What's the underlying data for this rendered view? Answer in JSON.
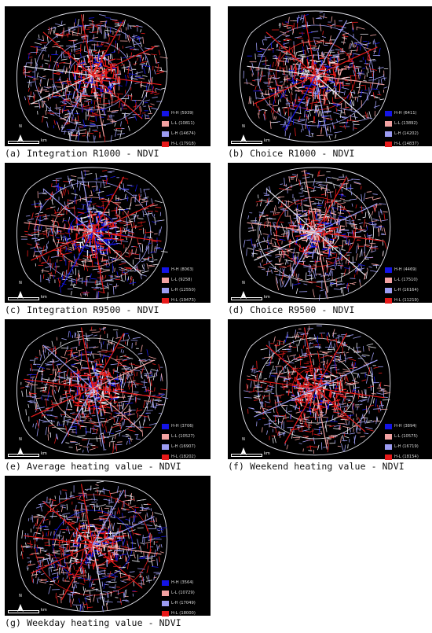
{
  "colors": {
    "background": "#000000",
    "H-H": "#1414e6",
    "L-L": "#f2a2a2",
    "L-H": "#9c9cf2",
    "H-L": "#e61a1a",
    "neutral": "#e8e8f0"
  },
  "panels": [
    {
      "caption": "(a) Integration R1000 - NDVI",
      "legend": [
        {
          "cls": "H-H",
          "text": "H-H (5939)"
        },
        {
          "cls": "L-L",
          "text": "L-L (10811)"
        },
        {
          "cls": "L-H",
          "text": "L-H (14674)"
        },
        {
          "cls": "H-L",
          "text": "H-L (17918)"
        }
      ],
      "mix": {
        "H-H": 0.15,
        "L-L": 0.18,
        "L-H": 0.25,
        "H-L": 0.42
      }
    },
    {
      "caption": "(b) Choice R1000 - NDVI",
      "legend": [
        {
          "cls": "H-H",
          "text": "H-H (6411)"
        },
        {
          "cls": "L-L",
          "text": "L-L (13892)"
        },
        {
          "cls": "L-H",
          "text": "L-H (14202)"
        },
        {
          "cls": "H-L",
          "text": "H-L (14837)"
        }
      ],
      "mix": {
        "H-H": 0.12,
        "L-L": 0.26,
        "L-H": 0.3,
        "H-L": 0.32
      }
    },
    {
      "caption": "(c) Integration R9500 - NDVI",
      "legend": [
        {
          "cls": "H-H",
          "text": "H-H (8063)"
        },
        {
          "cls": "L-L",
          "text": "L-L (9258)"
        },
        {
          "cls": "L-H",
          "text": "L-H (12550)"
        },
        {
          "cls": "H-L",
          "text": "H-L (19473)"
        }
      ],
      "mix": {
        "H-H": 0.2,
        "L-L": 0.15,
        "L-H": 0.23,
        "H-L": 0.42
      }
    },
    {
      "caption": "(d) Choice R9500 - NDVI",
      "legend": [
        {
          "cls": "H-H",
          "text": "H-H (4469)"
        },
        {
          "cls": "L-L",
          "text": "L-L (17510)"
        },
        {
          "cls": "L-H",
          "text": "L-H (16164)"
        },
        {
          "cls": "H-L",
          "text": "H-L (11219)"
        }
      ],
      "mix": {
        "H-H": 0.09,
        "L-L": 0.35,
        "L-H": 0.34,
        "H-L": 0.22
      }
    },
    {
      "caption": "(e) Average heating value - NDVI",
      "legend": [
        {
          "cls": "H-H",
          "text": "H-H (3706)"
        },
        {
          "cls": "L-L",
          "text": "L-L (10527)"
        },
        {
          "cls": "L-H",
          "text": "L-H (16907)"
        },
        {
          "cls": "H-L",
          "text": "H-L (18202)"
        }
      ],
      "mix": {
        "H-H": 0.09,
        "L-L": 0.2,
        "L-H": 0.33,
        "H-L": 0.38
      }
    },
    {
      "caption": "(f) Weekend heating value - NDVI",
      "legend": [
        {
          "cls": "H-H",
          "text": "H-H (3894)"
        },
        {
          "cls": "L-L",
          "text": "L-L (10575)"
        },
        {
          "cls": "L-H",
          "text": "L-H (16719)"
        },
        {
          "cls": "H-L",
          "text": "H-L (18154)"
        }
      ],
      "mix": {
        "H-H": 0.09,
        "L-L": 0.2,
        "L-H": 0.33,
        "H-L": 0.38
      }
    },
    {
      "caption": "(g) Weekday heating value - NDVI",
      "legend": [
        {
          "cls": "H-H",
          "text": "H-H (3564)"
        },
        {
          "cls": "L-L",
          "text": "L-L (10729)"
        },
        {
          "cls": "L-H",
          "text": "L-H (17049)"
        },
        {
          "cls": "H-L",
          "text": "H-L (18000)"
        }
      ],
      "mix": {
        "H-H": 0.08,
        "L-L": 0.21,
        "L-H": 0.33,
        "H-L": 0.38
      }
    }
  ],
  "north_label": "N",
  "scale_label": "km"
}
